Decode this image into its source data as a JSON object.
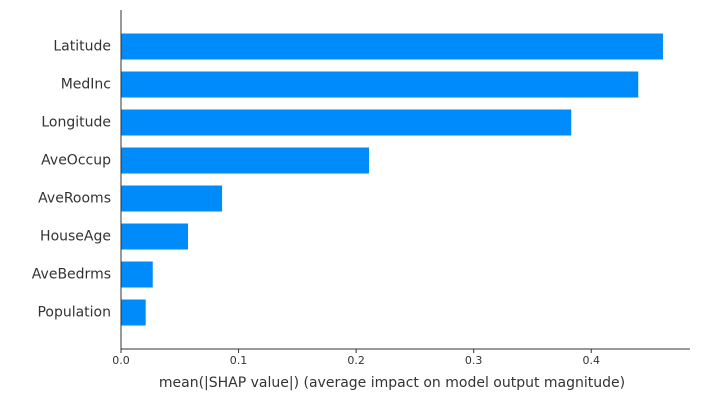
{
  "chart_data": {
    "type": "bar",
    "orientation": "horizontal",
    "categories": [
      "Latitude",
      "MedInc",
      "Longitude",
      "AveOccup",
      "AveRooms",
      "HouseAge",
      "AveBedrms",
      "Population"
    ],
    "values": [
      0.461,
      0.44,
      0.383,
      0.211,
      0.086,
      0.057,
      0.027,
      0.021
    ],
    "xlabel": "mean(|SHAP value|) (average impact on model output magnitude)",
    "ylabel": "",
    "title": "",
    "xlim": [
      0,
      0.484
    ],
    "xticks": [
      0.0,
      0.1,
      0.2,
      0.3,
      0.4
    ],
    "xtick_labels": [
      "0.0",
      "0.1",
      "0.2",
      "0.3",
      "0.4"
    ],
    "bar_color": "#008bfb",
    "axis_color": "#333333",
    "label_color": "#333333",
    "grid": false,
    "legend": "none"
  }
}
